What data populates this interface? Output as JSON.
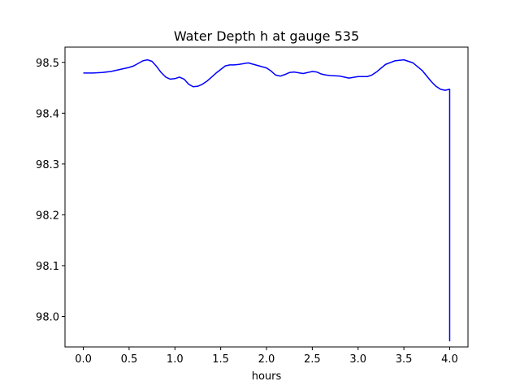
{
  "chart_data": {
    "type": "line",
    "title": "Water Depth h at gauge 535",
    "xlabel": "hours",
    "ylabel": "",
    "xlim": [
      -0.2,
      4.2
    ],
    "ylim": [
      97.94,
      98.53
    ],
    "xticks": [
      0.0,
      0.5,
      1.0,
      1.5,
      2.0,
      2.5,
      3.0,
      3.5,
      4.0
    ],
    "xtick_labels": [
      "0.0",
      "0.5",
      "1.0",
      "1.5",
      "2.0",
      "2.5",
      "3.0",
      "3.5",
      "4.0"
    ],
    "yticks": [
      98.0,
      98.1,
      98.2,
      98.3,
      98.4,
      98.5
    ],
    "ytick_labels": [
      "98.0",
      "98.1",
      "98.2",
      "98.3",
      "98.4",
      "98.5"
    ],
    "grid": false,
    "legend": "none",
    "series": [
      {
        "color": "#0000ff",
        "x": [
          0.0,
          0.1,
          0.2,
          0.3,
          0.4,
          0.5,
          0.55,
          0.6,
          0.65,
          0.7,
          0.75,
          0.8,
          0.85,
          0.9,
          0.95,
          1.0,
          1.05,
          1.1,
          1.15,
          1.2,
          1.25,
          1.3,
          1.35,
          1.4,
          1.45,
          1.5,
          1.55,
          1.6,
          1.65,
          1.7,
          1.8,
          1.9,
          2.0,
          2.05,
          2.1,
          2.15,
          2.2,
          2.25,
          2.3,
          2.4,
          2.5,
          2.55,
          2.6,
          2.65,
          2.7,
          2.8,
          2.9,
          3.0,
          3.1,
          3.15,
          3.2,
          3.3,
          3.4,
          3.5,
          3.6,
          3.7,
          3.8,
          3.85,
          3.9,
          3.95,
          4.0,
          4.0
        ],
        "y": [
          98.479,
          98.479,
          98.48,
          98.482,
          98.486,
          98.49,
          98.493,
          98.498,
          98.503,
          98.505,
          98.502,
          98.492,
          98.48,
          98.471,
          98.467,
          98.468,
          98.471,
          98.467,
          98.457,
          98.452,
          98.453,
          98.457,
          98.463,
          98.471,
          98.479,
          98.486,
          98.493,
          98.495,
          98.495,
          98.496,
          98.499,
          98.494,
          98.489,
          98.483,
          98.475,
          98.473,
          98.476,
          98.48,
          98.481,
          98.478,
          98.482,
          98.481,
          98.477,
          98.475,
          98.474,
          98.473,
          98.469,
          98.472,
          98.472,
          98.475,
          98.481,
          98.496,
          98.503,
          98.505,
          98.499,
          98.484,
          98.462,
          98.453,
          98.447,
          98.445,
          98.447,
          97.951
        ]
      }
    ]
  }
}
